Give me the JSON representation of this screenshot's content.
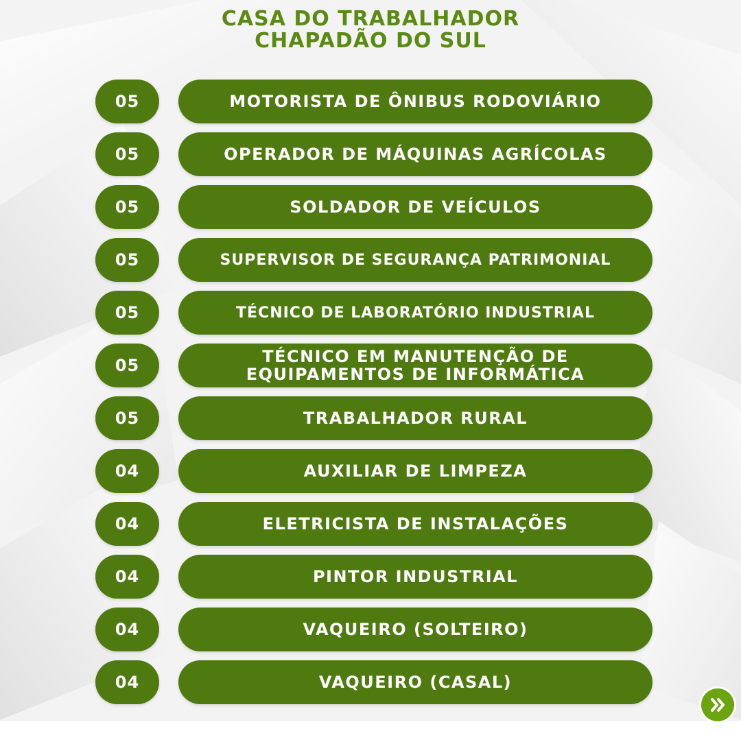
{
  "header": {
    "line1": "CASA DO TRABALHADOR",
    "line2": "CHAPADÃO DO SUL"
  },
  "jobs": [
    {
      "count": "05",
      "title": "MOTORISTA DE ÔNIBUS RODOVIÁRIO"
    },
    {
      "count": "05",
      "title": "OPERADOR DE MÁQUINAS AGRÍCOLAS"
    },
    {
      "count": "05",
      "title": "SOLDADOR DE VEÍCULOS"
    },
    {
      "count": "05",
      "title": "SUPERVISOR DE SEGURANÇA PATRIMONIAL"
    },
    {
      "count": "05",
      "title": "TÉCNICO DE LABORATÓRIO INDUSTRIAL"
    },
    {
      "count": "05",
      "title_line1": "TÉCNICO EM MANUTENÇÃO DE",
      "title_line2": "EQUIPAMENTOS DE INFORMÁTICA"
    },
    {
      "count": "05",
      "title": "TRABALHADOR RURAL"
    },
    {
      "count": "04",
      "title": "AUXILIAR DE LIMPEZA"
    },
    {
      "count": "04",
      "title": "ELETRICISTA DE INSTALAÇÕES"
    },
    {
      "count": "04",
      "title": "PINTOR INDUSTRIAL"
    },
    {
      "count": "04",
      "title": "VAQUEIRO (SOLTEIRO)"
    },
    {
      "count": "04",
      "title": "VAQUEIRO (CASAL)"
    }
  ],
  "next_button": {
    "icon": "double-chevron-right-icon"
  },
  "colors": {
    "accent": "#5a8a12",
    "pill": "#4f7a0f",
    "next": "#6aa50f"
  }
}
